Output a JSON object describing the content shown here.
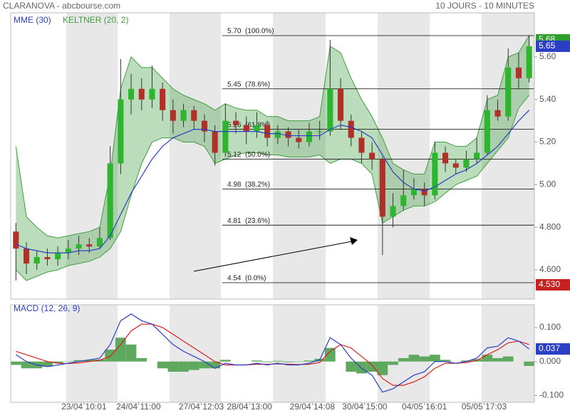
{
  "chart_data": [
    {
      "type": "candlestick",
      "title": "CLARANOVA - abcbourse.com",
      "subtitle": "10 JOURS - 10 MINUTES",
      "xlim": [
        -0.5,
        49.5
      ],
      "xticks": [
        {
          "value": 6.5,
          "label": "23/04 10:01"
        },
        {
          "value": 11.7,
          "label": "24/04 11:00"
        },
        {
          "value": 17.7,
          "label": "27/04 12:03"
        },
        {
          "value": 22.3,
          "label": "28/04 13:00"
        },
        {
          "value": 28.3,
          "label": "29/04 14:08"
        },
        {
          "value": 33.3,
          "label": "30/04 15:00"
        },
        {
          "value": 39,
          "label": "04/05 16:01"
        },
        {
          "value": 44.7,
          "label": "05/05 17:03"
        }
      ],
      "ylim": [
        4.463,
        5.807
      ],
      "yticks": [
        {
          "value": 5.6,
          "label": "5.60"
        },
        {
          "value": 5.4,
          "label": "5.40"
        },
        {
          "value": 5.2,
          "label": "5.20"
        },
        {
          "value": 5.0,
          "label": "5.00"
        },
        {
          "value": 4.8,
          "label": "4.800"
        },
        {
          "value": 4.6,
          "label": "4.600"
        }
      ],
      "up_color": "#2db52d",
      "down_color": "#b0302a",
      "open": [
        4.78,
        4.7,
        4.63,
        4.66,
        4.65,
        4.68,
        4.7,
        4.72,
        4.71,
        4.75,
        5.1,
        5.4,
        5.45,
        5.4,
        5.45,
        5.35,
        5.3,
        5.35,
        5.3,
        5.25,
        5.15,
        5.3,
        5.28,
        5.25,
        5.28,
        5.22,
        5.25,
        5.22,
        5.2,
        5.25,
        5.25,
        5.45,
        5.3,
        5.22,
        5.15,
        5.12,
        4.85,
        4.9,
        4.95,
        4.98,
        4.95,
        5.15,
        5.1,
        5.08,
        5.12,
        5.15,
        5.35,
        5.32,
        5.55,
        5.5
      ],
      "high": [
        4.82,
        4.73,
        4.69,
        4.7,
        4.71,
        4.74,
        4.76,
        4.75,
        4.8,
        5.18,
        5.59,
        5.52,
        5.5,
        5.56,
        5.48,
        5.4,
        5.38,
        5.37,
        5.33,
        5.28,
        5.38,
        5.34,
        5.32,
        5.34,
        5.3,
        5.28,
        5.27,
        5.26,
        5.29,
        5.3,
        5.68,
        5.5,
        5.33,
        5.25,
        5.2,
        5.13,
        4.96,
        5.07,
        5.03,
        5.01,
        5.2,
        5.18,
        5.12,
        5.16,
        5.22,
        5.42,
        5.4,
        5.64,
        5.62,
        5.7
      ],
      "low": [
        4.55,
        4.58,
        4.6,
        4.62,
        4.62,
        4.65,
        4.67,
        4.68,
        4.7,
        4.74,
        5.05,
        5.33,
        5.35,
        5.36,
        5.3,
        5.24,
        5.27,
        5.26,
        5.2,
        5.09,
        5.13,
        5.24,
        5.19,
        5.22,
        5.18,
        5.19,
        5.18,
        5.17,
        5.18,
        5.21,
        5.23,
        5.26,
        5.18,
        5.1,
        5.07,
        4.67,
        4.8,
        4.88,
        4.93,
        4.9,
        4.93,
        5.06,
        5.05,
        5.06,
        5.1,
        5.14,
        5.3,
        5.3,
        5.45,
        5.48
      ],
      "close": [
        4.7,
        4.63,
        4.66,
        4.65,
        4.68,
        4.7,
        4.72,
        4.71,
        4.75,
        5.1,
        5.4,
        5.45,
        5.4,
        5.45,
        5.35,
        5.3,
        5.35,
        5.3,
        5.25,
        5.15,
        5.3,
        5.28,
        5.25,
        5.28,
        5.22,
        5.25,
        5.22,
        5.2,
        5.25,
        5.25,
        5.45,
        5.3,
        5.22,
        5.15,
        5.12,
        4.85,
        4.9,
        4.95,
        4.98,
        4.95,
        5.15,
        5.1,
        5.08,
        5.12,
        5.15,
        5.35,
        5.32,
        5.55,
        5.5,
        5.65
      ],
      "series": [
        {
          "name": "MME (30)",
          "color": "#2b3fc4",
          "values": [
            4.72,
            4.7,
            4.69,
            4.68,
            4.68,
            4.68,
            4.69,
            4.69,
            4.7,
            4.76,
            4.86,
            4.96,
            5.04,
            5.12,
            5.18,
            5.22,
            5.24,
            5.26,
            5.26,
            5.25,
            5.25,
            5.25,
            5.25,
            5.25,
            5.24,
            5.24,
            5.23,
            5.23,
            5.23,
            5.23,
            5.26,
            5.28,
            5.27,
            5.25,
            5.22,
            5.14,
            5.06,
            5.01,
            4.98,
            4.97,
            4.99,
            5.02,
            5.05,
            5.07,
            5.1,
            5.14,
            5.18,
            5.24,
            5.3,
            5.35
          ]
        },
        {
          "name": "KELTNER (20, 2)",
          "color": "#3f9f3f",
          "upper": [
            5.18,
            4.85,
            4.8,
            4.76,
            4.75,
            4.76,
            4.77,
            4.78,
            4.8,
            5.05,
            5.45,
            5.6,
            5.55,
            5.55,
            5.5,
            5.45,
            5.42,
            5.4,
            5.38,
            5.35,
            5.38,
            5.36,
            5.35,
            5.35,
            5.32,
            5.32,
            5.3,
            5.3,
            5.3,
            5.32,
            5.65,
            5.62,
            5.5,
            5.4,
            5.32,
            5.22,
            5.1,
            5.07,
            5.05,
            5.05,
            5.2,
            5.2,
            5.18,
            5.18,
            5.22,
            5.4,
            5.42,
            5.6,
            5.62,
            5.7
          ],
          "lower": [
            4.6,
            4.55,
            4.57,
            4.59,
            4.6,
            4.62,
            4.63,
            4.64,
            4.66,
            4.7,
            4.78,
            4.95,
            5.1,
            5.2,
            5.22,
            5.22,
            5.2,
            5.2,
            5.18,
            5.1,
            5.12,
            5.14,
            5.15,
            5.15,
            5.14,
            5.14,
            5.13,
            5.13,
            5.13,
            5.14,
            5.1,
            5.12,
            5.12,
            5.1,
            5.05,
            4.82,
            4.85,
            4.88,
            4.9,
            4.9,
            4.92,
            4.96,
            5.0,
            5.02,
            5.04,
            5.1,
            5.16,
            5.22,
            5.36,
            5.42
          ]
        }
      ],
      "fib_levels": [
        {
          "value": 5.7,
          "label": "5.70  (100.0%)"
        },
        {
          "value": 5.45,
          "label": "5.45  (78.6%)"
        },
        {
          "value": 5.26,
          "label": "5.26  (61.8%)"
        },
        {
          "value": 5.12,
          "label": "5.12  (50.0%)"
        },
        {
          "value": 4.98,
          "label": "4.98  (38.2%)"
        },
        {
          "value": 4.81,
          "label": "4.81  (23.6%)"
        },
        {
          "value": 4.54,
          "label": "4.54  (0.0%)"
        }
      ],
      "price_markers": [
        {
          "value": 5.68,
          "label": "5.68",
          "color": "#2e9e2e"
        },
        {
          "value": 5.65,
          "label": "5.65",
          "color": "#2b3fc4"
        },
        {
          "value": 4.53,
          "label": "4.530",
          "color": "#c62020"
        }
      ]
    },
    {
      "type": "macd",
      "xlim": [
        -0.5,
        49.5
      ],
      "ylim": [
        -0.12,
        0.167
      ],
      "yticks": [
        {
          "value": 0.1,
          "label": "0.100"
        },
        {
          "value": 0,
          "label": "0.000"
        },
        {
          "value": -0.1,
          "label": "-0.100"
        }
      ],
      "series": [
        {
          "name": "MACD (12, 26, 9)",
          "color": "#2b3fc4",
          "values": [
            0.02,
            0.0,
            -0.01,
            -0.015,
            -0.01,
            -0.005,
            0,
            0.005,
            0.01,
            0.05,
            0.12,
            0.14,
            0.12,
            0.11,
            0.08,
            0.05,
            0.03,
            0.015,
            0,
            -0.02,
            -0.005,
            -0.01,
            -0.01,
            -0.005,
            -0.01,
            -0.005,
            -0.01,
            -0.01,
            -0.005,
            0.005,
            0.07,
            0.05,
            0.01,
            -0.02,
            -0.04,
            -0.09,
            -0.08,
            -0.06,
            -0.04,
            -0.03,
            0.0,
            0.0,
            -0.005,
            0.0,
            0.01,
            0.04,
            0.045,
            0.07,
            0.06,
            0.037
          ]
        },
        {
          "color": "#d62020",
          "values": [
            0.03,
            0.02,
            0.01,
            0.0,
            -0.005,
            -0.006,
            -0.004,
            0.0,
            0.004,
            0.015,
            0.05,
            0.09,
            0.11,
            0.11,
            0.1,
            0.08,
            0.06,
            0.04,
            0.02,
            0.0,
            -0.01,
            -0.01,
            -0.01,
            -0.008,
            -0.008,
            -0.007,
            -0.008,
            -0.009,
            -0.008,
            -0.003,
            0.03,
            0.05,
            0.04,
            0.015,
            -0.01,
            -0.05,
            -0.07,
            -0.07,
            -0.06,
            -0.045,
            -0.02,
            -0.005,
            -0.005,
            -0.003,
            0.003,
            0.02,
            0.035,
            0.055,
            0.06,
            0.05
          ]
        },
        {
          "color": "#5fa85f",
          "values": [
            -0.01,
            -0.02,
            -0.02,
            -0.015,
            -0.005,
            0.001,
            0.004,
            0.005,
            0.006,
            0.035,
            0.07,
            0.05,
            0.01,
            0.0,
            -0.02,
            -0.03,
            -0.03,
            -0.025,
            -0.02,
            -0.02,
            0.005,
            0.0,
            0.0,
            0.003,
            -0.002,
            0.002,
            -0.002,
            -0.001,
            0.003,
            0.008,
            0.04,
            0.0,
            -0.03,
            -0.035,
            -0.03,
            -0.04,
            -0.01,
            0.01,
            0.02,
            0.015,
            0.02,
            0.005,
            0.0,
            0.003,
            0.007,
            0.02,
            0.01,
            0.015,
            0.0,
            -0.013
          ]
        }
      ],
      "price_markers": [
        {
          "value": 0.037,
          "label": "0.037",
          "color": "#2b3fc4"
        }
      ]
    }
  ]
}
